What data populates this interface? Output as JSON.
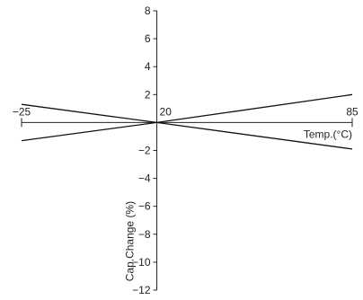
{
  "chart_data": {
    "type": "line",
    "title": "",
    "xlabel": "Temp.(°C)",
    "ylabel": "Cap.Change (%)",
    "xlim": [
      -25,
      85
    ],
    "ylim": [
      -12,
      8
    ],
    "x_ticks": [
      {
        "value": -25,
        "label": "−25"
      },
      {
        "value": 20,
        "label": "20"
      },
      {
        "value": 85,
        "label": "85"
      }
    ],
    "y_ticks": [
      {
        "value": 8,
        "label": "8"
      },
      {
        "value": 6,
        "label": "6"
      },
      {
        "value": 4,
        "label": "4"
      },
      {
        "value": 2,
        "label": "2"
      },
      {
        "value": -2,
        "label": "−2"
      },
      {
        "value": -4,
        "label": "−4"
      },
      {
        "value": -6,
        "label": "−6"
      },
      {
        "value": -8,
        "label": "−8"
      },
      {
        "value": -10,
        "label": "−10"
      },
      {
        "value": -12,
        "label": "−12"
      }
    ],
    "grid": false,
    "legend": "none",
    "series": [
      {
        "x": [
          -25,
          20,
          85
        ],
        "y": [
          1.3,
          0,
          2.0
        ]
      },
      {
        "x": [
          -25,
          20,
          85
        ],
        "y": [
          -1.3,
          0,
          -1.9
        ]
      }
    ]
  }
}
